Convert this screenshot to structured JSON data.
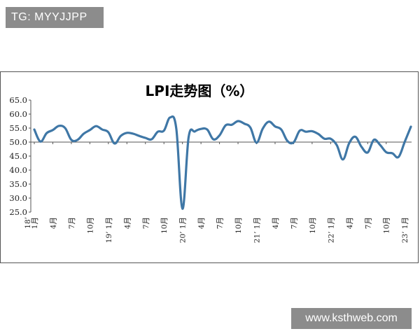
{
  "watermark_top": "TG: MYYJJPP",
  "watermark_bottom": "www.ksthweb.com",
  "chart_data": {
    "type": "line",
    "title": "LPI走势图（%）",
    "ylim": [
      25.0,
      65.0
    ],
    "yticks": [
      "65.0",
      "60.0",
      "55.0",
      "50.0",
      "45.0",
      "40.0",
      "35.0",
      "30.0",
      "25.0"
    ],
    "reference_line": 50.0,
    "line_color": "#3f77a6",
    "grid": false,
    "legend": "none",
    "x_tick_labels": [
      {
        "index": 0,
        "label": "18’"
      },
      {
        "index": 0,
        "label": "1月"
      },
      {
        "index": 3,
        "label": "4月"
      },
      {
        "index": 6,
        "label": "7月"
      },
      {
        "index": 9,
        "label": "10月"
      },
      {
        "index": 12,
        "label": "19’ 1月"
      },
      {
        "index": 15,
        "label": "4月"
      },
      {
        "index": 18,
        "label": "7月"
      },
      {
        "index": 21,
        "label": "10月"
      },
      {
        "index": 24,
        "label": "20’ 1月"
      },
      {
        "index": 27,
        "label": "4月"
      },
      {
        "index": 30,
        "label": "7月"
      },
      {
        "index": 33,
        "label": "10月"
      },
      {
        "index": 36,
        "label": "21’ 1月"
      },
      {
        "index": 39,
        "label": "4月"
      },
      {
        "index": 42,
        "label": "7月"
      },
      {
        "index": 45,
        "label": "10月"
      },
      {
        "index": 48,
        "label": "22’ 1月"
      },
      {
        "index": 51,
        "label": "4月"
      },
      {
        "index": 54,
        "label": "7月"
      },
      {
        "index": 57,
        "label": "10月"
      },
      {
        "index": 60,
        "label": "23’ 1月"
      }
    ],
    "series": [
      {
        "values": [
          54.5,
          50.2,
          53.2,
          54.3,
          55.8,
          55.0,
          50.8,
          50.8,
          53.0,
          54.3,
          55.7,
          54.5,
          53.5,
          49.5,
          52.2,
          53.3,
          53.0,
          52.2,
          51.5,
          51.0,
          53.7,
          54.1,
          58.8,
          54.8,
          26.2,
          51.8,
          53.8,
          54.7,
          54.5,
          51.0,
          52.4,
          56.0,
          56.2,
          57.5,
          56.6,
          55.2,
          49.8,
          54.8,
          57.3,
          55.6,
          54.5,
          50.4,
          49.9,
          54.1,
          53.7,
          53.9,
          52.9,
          51.2,
          51.2,
          48.9,
          43.8,
          49.6,
          51.9,
          48.3,
          46.3,
          50.8,
          49.0,
          46.4,
          46.0,
          44.7,
          50.1,
          55.5
        ]
      }
    ]
  }
}
